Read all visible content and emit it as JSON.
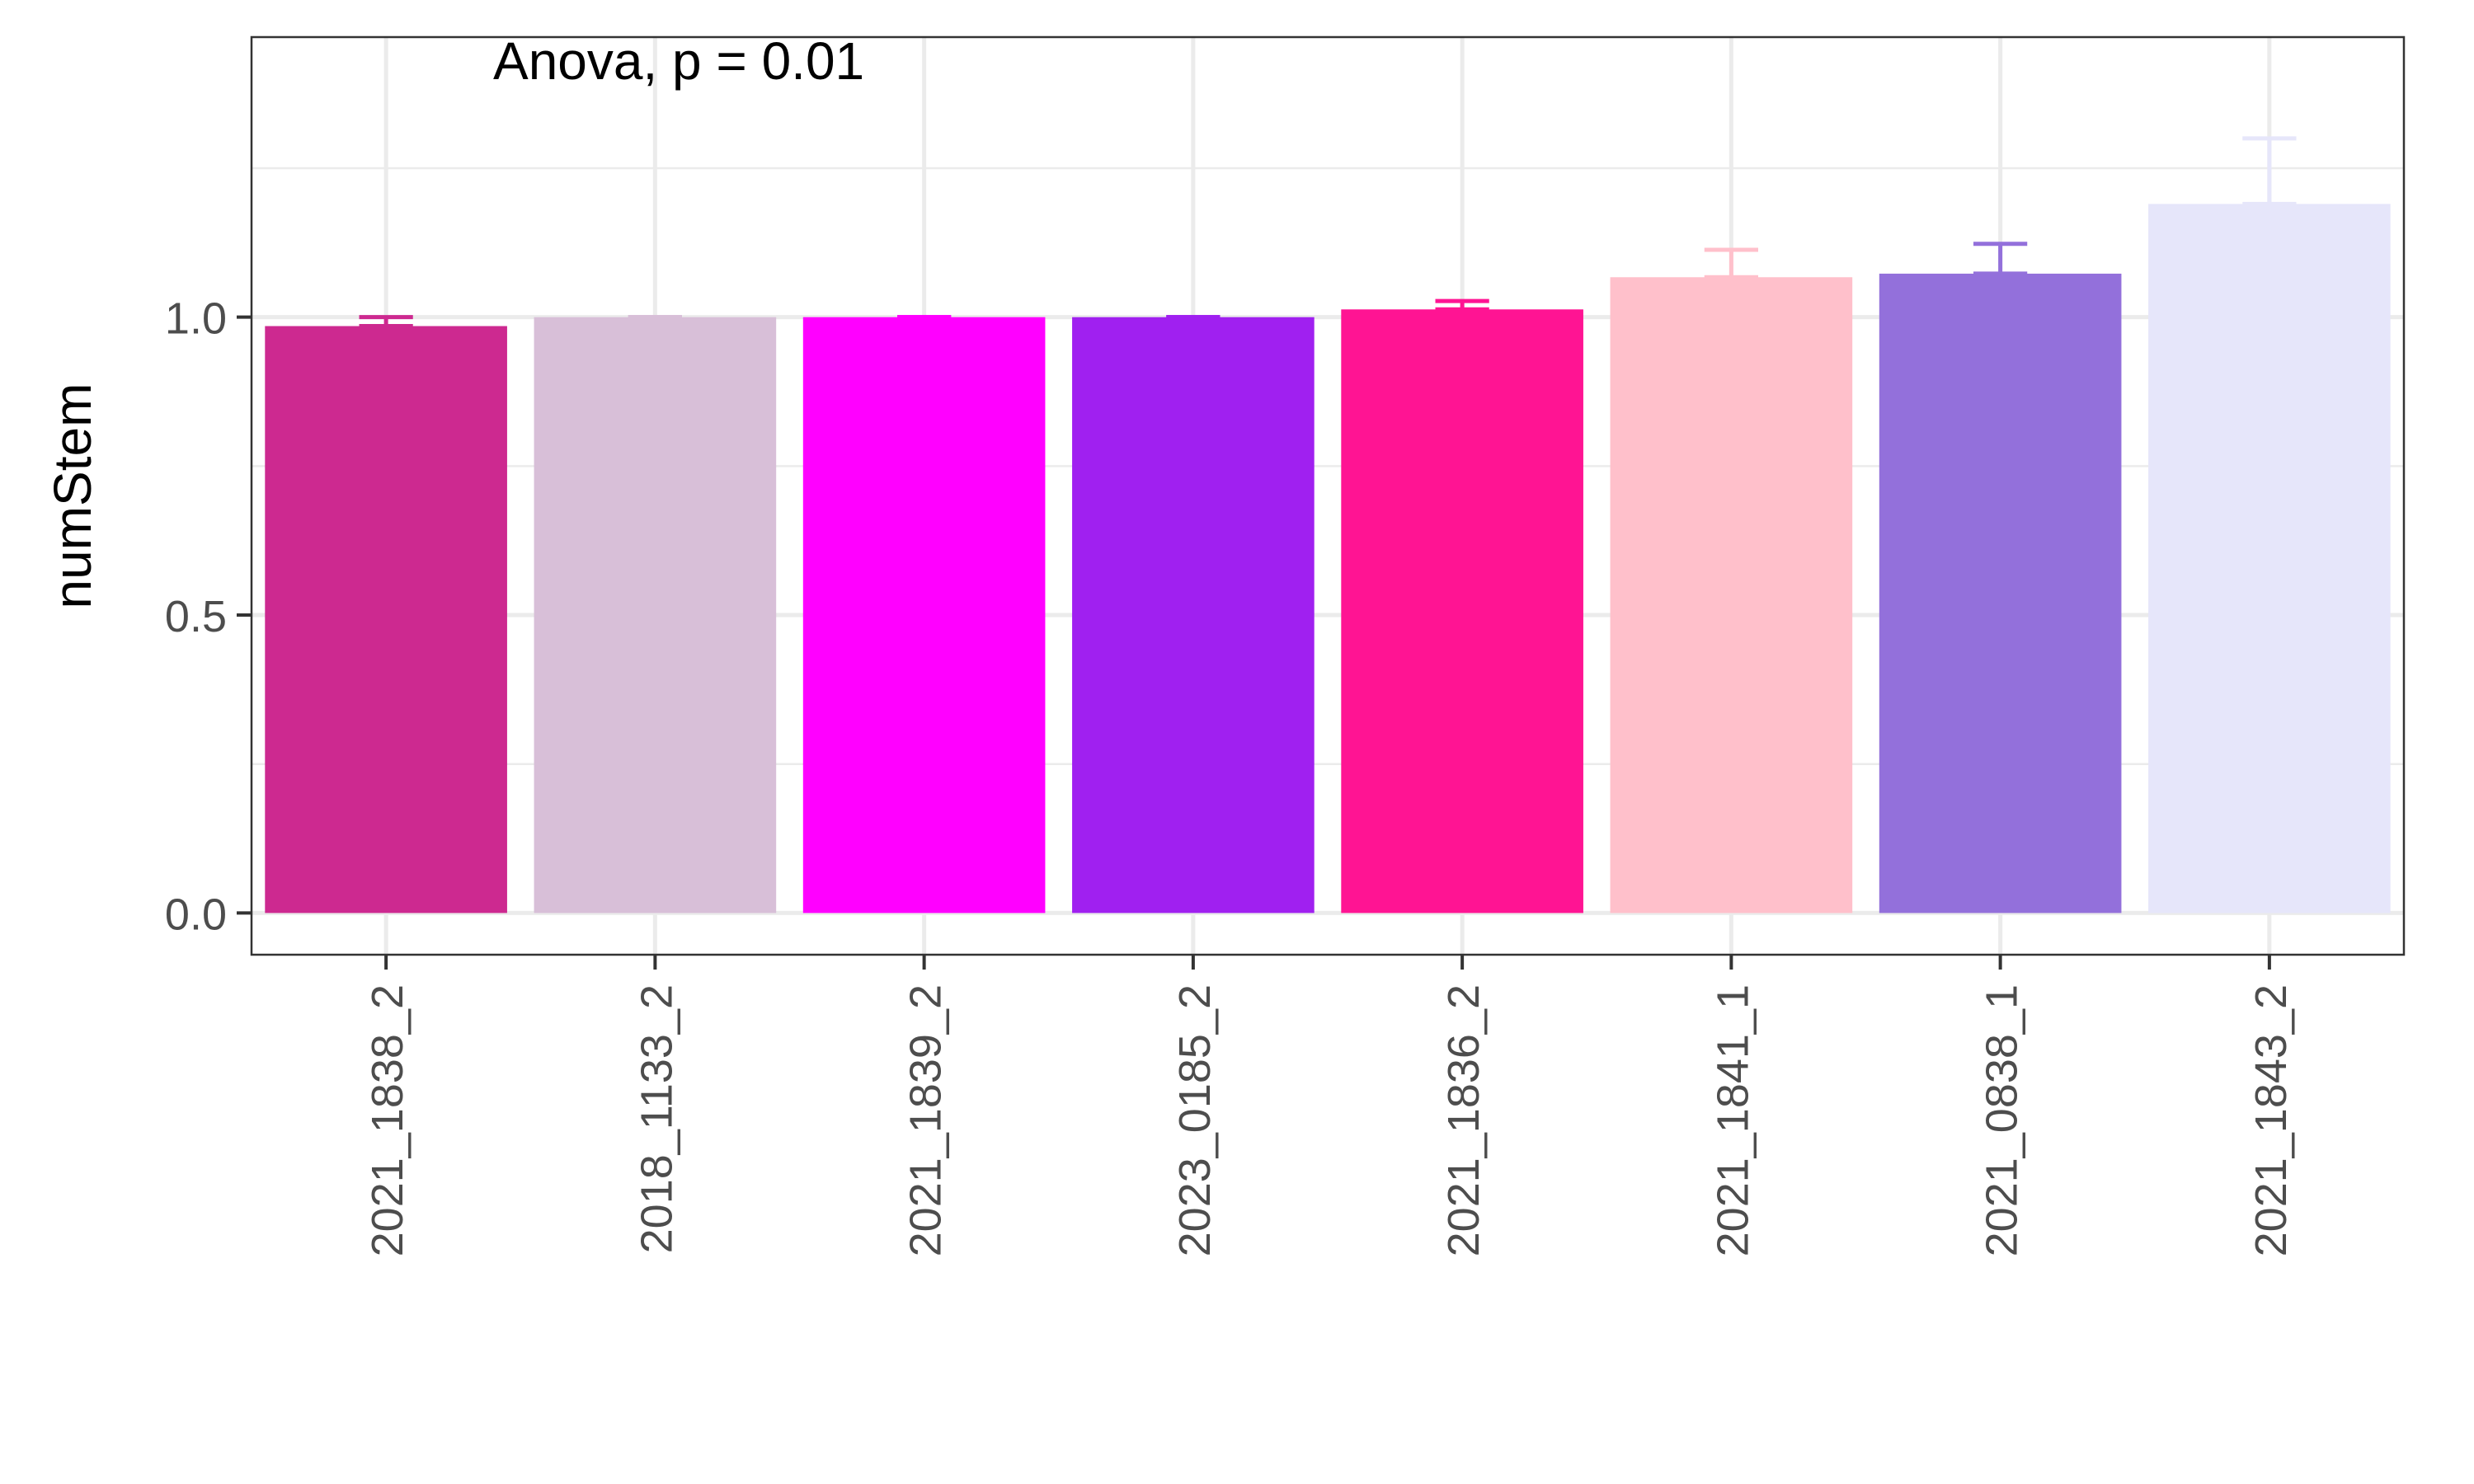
{
  "chart_data": {
    "type": "bar",
    "title": "",
    "annotation": "Anova, p = 0.01",
    "xlabel": "",
    "ylabel": "numStem",
    "ylim": [
      -0.07,
      1.47
    ],
    "yticks": [
      0.0,
      0.5,
      1.0
    ],
    "ytick_labels": [
      "0.0",
      "0.5",
      "1.0"
    ],
    "grid": true,
    "legend": "none",
    "categories": [
      "2021_1838_2",
      "2018_1133_2",
      "2021_1839_2",
      "2023_0185_2",
      "2021_1836_2",
      "2021_1841_1",
      "2021_0838_1",
      "2021_1843_2"
    ],
    "values": [
      0.985,
      1.0,
      1.0,
      1.0,
      1.013,
      1.067,
      1.073,
      1.19
    ],
    "error_upper": [
      1.0,
      1.0,
      1.0,
      1.0,
      1.027,
      1.113,
      1.123,
      1.3
    ],
    "colors": [
      "#CD2990",
      "#D8BFD8",
      "#FF00FF",
      "#A020F0",
      "#FF1493",
      "#FFC0CB",
      "#9370DB",
      "#E6E6FA"
    ]
  }
}
